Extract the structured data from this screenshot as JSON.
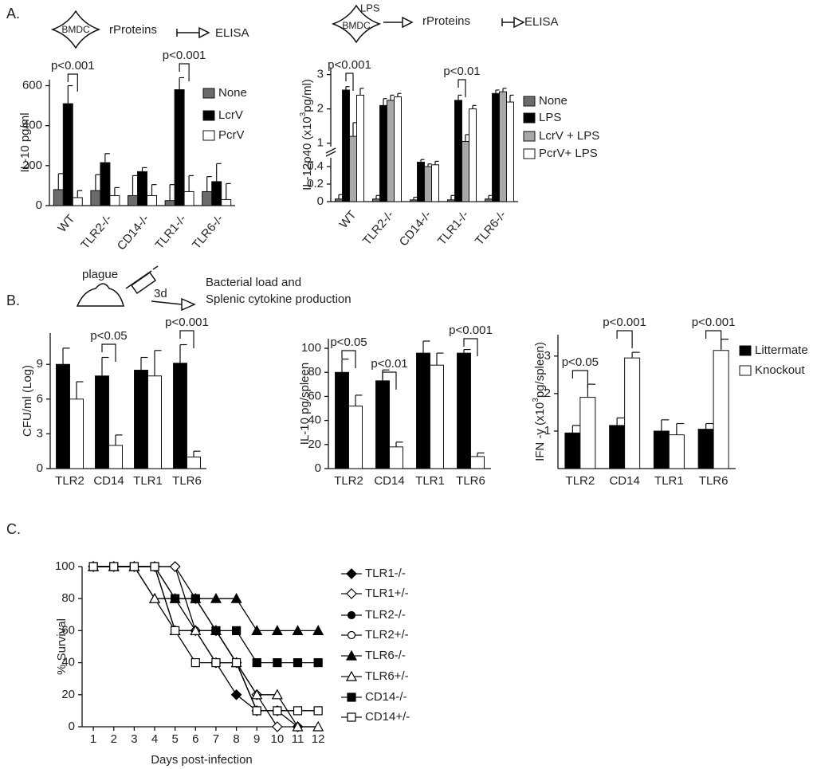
{
  "panel_labels": [
    "A.",
    "B.",
    "C."
  ],
  "schemes": {
    "a_left": {
      "cell": "BMDC",
      "step": "rProteins",
      "readout": "ELISA"
    },
    "a_right": {
      "cell": "BMDC",
      "stimulus": "LPS",
      "step": "rProteins",
      "readout": "ELISA"
    },
    "b": {
      "agent": "plague",
      "time": "3d",
      "readout": [
        "Bacterial load and",
        "Splenic cytokine production"
      ]
    }
  },
  "chart_data": [
    {
      "type": "bar",
      "ylabel": "IL-10 pg/ml",
      "categories": [
        "WT",
        "TLR2-/-",
        "CD14-/-",
        "TLR1-/-",
        "TLR6-/-"
      ],
      "series": [
        {
          "name": "None",
          "color": "#6b6b6b",
          "values": [
            80,
            75,
            50,
            25,
            70
          ],
          "errors": [
            80,
            80,
            100,
            80,
            75
          ]
        },
        {
          "name": "LcrV",
          "color": "#000000",
          "values": [
            510,
            215,
            170,
            580,
            120
          ],
          "errors": [
            90,
            45,
            20,
            60,
            90
          ]
        },
        {
          "name": "PcrV",
          "color": "#ffffff",
          "values": [
            40,
            50,
            50,
            70,
            30
          ],
          "errors": [
            35,
            40,
            55,
            80,
            80
          ]
        }
      ],
      "ylim": [
        0,
        630
      ],
      "yticks": [
        0,
        200,
        400,
        600
      ],
      "legend": "right",
      "annotations": [
        "p<0.001",
        "p<0.001"
      ]
    },
    {
      "type": "bar",
      "ylabel": [
        "IL-12p40 (x10",
        "3",
        "pg/ml)"
      ],
      "categories": [
        "WT",
        "TLR2-/-",
        "CD14-/-",
        "TLR1-/-",
        "TLR6-/-"
      ],
      "series": [
        {
          "name": "None",
          "color": "#6b6b6b",
          "values": [
            0.03,
            0.03,
            0.02,
            0.02,
            0.03
          ],
          "errors": [
            0.05,
            0.04,
            0.03,
            0.05,
            0.04
          ]
        },
        {
          "name": "LPS",
          "color": "#000000",
          "values": [
            2.55,
            2.1,
            0.45,
            2.25,
            2.45
          ],
          "errors": [
            0.1,
            0.2,
            0.03,
            0.15,
            0.1
          ]
        },
        {
          "name": "LcrV + LPS",
          "color": "#a8a8a8",
          "values": [
            1.2,
            2.25,
            0.4,
            1.05,
            2.5
          ],
          "errors": [
            0.4,
            0.15,
            0.03,
            0.2,
            0.1
          ]
        },
        {
          "name": "PcrV+ LPS",
          "color": "#ffffff",
          "values": [
            2.4,
            2.35,
            0.42,
            2.0,
            2.2
          ],
          "errors": [
            0.2,
            0.1,
            0.04,
            0.1,
            0.2
          ]
        }
      ],
      "ylim": [
        0,
        3.2
      ],
      "y_break": [
        0.5,
        0.9
      ],
      "yticks": [
        0,
        0.2,
        0.4,
        1,
        2,
        3
      ],
      "legend": "right",
      "annotations": [
        "p<0.001",
        "p<0.01"
      ]
    },
    {
      "type": "bar",
      "ylabel": "CFU/ml (Log)",
      "categories": [
        "TLR2",
        "CD14",
        "TLR1",
        "TLR6"
      ],
      "series": [
        {
          "color": "#000000",
          "values": [
            9,
            8,
            8.5,
            9.1
          ],
          "errors": [
            1.4,
            1.6,
            1.1,
            1.6
          ]
        },
        {
          "color": "#ffffff",
          "values": [
            6,
            2,
            8,
            1
          ],
          "errors": [
            1.5,
            0.9,
            2.2,
            0.5
          ]
        }
      ],
      "ylim": [
        0,
        11.7
      ],
      "yticks": [
        0,
        3,
        6,
        9
      ],
      "legend": false,
      "annotations": [
        "p<0.05",
        "p<0.001"
      ]
    },
    {
      "type": "bar",
      "ylabel": "IL-10 pg/spleen",
      "categories": [
        "TLR2",
        "CD14",
        "TLR1",
        "TLR6"
      ],
      "series": [
        {
          "color": "#000000",
          "values": [
            80,
            73,
            96,
            96
          ],
          "errors": [
            11,
            9,
            10,
            3
          ]
        },
        {
          "color": "#ffffff",
          "values": [
            52,
            18,
            86,
            10
          ],
          "errors": [
            9,
            4,
            10,
            3
          ]
        }
      ],
      "ylim": [
        0,
        108
      ],
      "yticks": [
        0,
        20,
        40,
        60,
        80,
        100
      ],
      "legend": false,
      "annotations": [
        "p<0.05",
        "p<0.01",
        "p<0.001"
      ]
    },
    {
      "type": "bar",
      "ylabel": [
        "IFN -γ (x10",
        "3",
        "pg/spleen)"
      ],
      "categories": [
        "TLR2",
        "CD14",
        "TLR1",
        "TLR6"
      ],
      "series": [
        {
          "name": "Littermate",
          "color": "#000000",
          "values": [
            0.95,
            1.15,
            1.0,
            1.05
          ],
          "errors": [
            0.2,
            0.2,
            0.3,
            0.15
          ]
        },
        {
          "name": "Knockout",
          "color": "#ffffff",
          "values": [
            1.9,
            2.95,
            0.9,
            3.15
          ],
          "errors": [
            0.35,
            0.15,
            0.3,
            0.3
          ]
        }
      ],
      "ylim": [
        0,
        3.57
      ],
      "yticks": [
        1,
        2,
        3
      ],
      "legend": "right",
      "annotations": [
        "p<0.05",
        "p<0.001",
        "p<0.001"
      ]
    },
    {
      "type": "line",
      "xlabel": "Days post-infection",
      "ylabel": "% Survival",
      "x": [
        1,
        2,
        3,
        4,
        5,
        6,
        7,
        8,
        9,
        10,
        11,
        12
      ],
      "series": [
        {
          "name": "TLR1-/-",
          "color": "#000000",
          "marker": "diamond",
          "fill": "filled",
          "values": [
            100,
            100,
            100,
            100,
            100,
            60,
            40,
            20,
            10,
            10,
            0,
            null
          ]
        },
        {
          "name": "TLR1+/-",
          "color": "#000000",
          "marker": "diamond",
          "fill": "open",
          "values": [
            100,
            100,
            100,
            100,
            100,
            80,
            60,
            40,
            20,
            0,
            null,
            null
          ]
        },
        {
          "name": "TLR2-/-",
          "color": "#000000",
          "marker": "circle",
          "fill": "filled",
          "values": [
            100,
            100,
            100,
            100,
            80,
            60,
            60,
            40,
            10,
            10,
            10,
            10
          ]
        },
        {
          "name": "TLR2+/-",
          "color": "#000000",
          "marker": "circle",
          "fill": "open",
          "values": [
            100,
            100,
            100,
            100,
            60,
            60,
            40,
            40,
            10,
            10,
            10,
            10
          ]
        },
        {
          "name": "TLR6-/-",
          "color": "#000000",
          "marker": "triangle",
          "fill": "filled",
          "values": [
            100,
            100,
            100,
            80,
            80,
            80,
            80,
            80,
            60,
            60,
            60,
            60
          ]
        },
        {
          "name": "TLR6+/-",
          "color": "#000000",
          "marker": "triangle",
          "fill": "open",
          "values": [
            100,
            100,
            100,
            80,
            60,
            60,
            60,
            40,
            20,
            20,
            0,
            0
          ]
        },
        {
          "name": "CD14-/-",
          "color": "#000000",
          "marker": "square",
          "fill": "filled",
          "values": [
            100,
            100,
            100,
            100,
            80,
            80,
            60,
            60,
            40,
            40,
            40,
            40
          ]
        },
        {
          "name": "CD14+/-",
          "color": "#000000",
          "marker": "square",
          "fill": "open",
          "values": [
            100,
            100,
            100,
            100,
            60,
            40,
            40,
            40,
            10,
            10,
            10,
            10
          ]
        }
      ],
      "xlim": [
        0.45,
        12.15
      ],
      "xticks": [
        1,
        2,
        3,
        4,
        5,
        6,
        7,
        8,
        9,
        10,
        11,
        12
      ],
      "ylim": [
        0,
        100
      ],
      "yticks": [
        0,
        20,
        40,
        60,
        80,
        100
      ],
      "legend": "right"
    }
  ]
}
